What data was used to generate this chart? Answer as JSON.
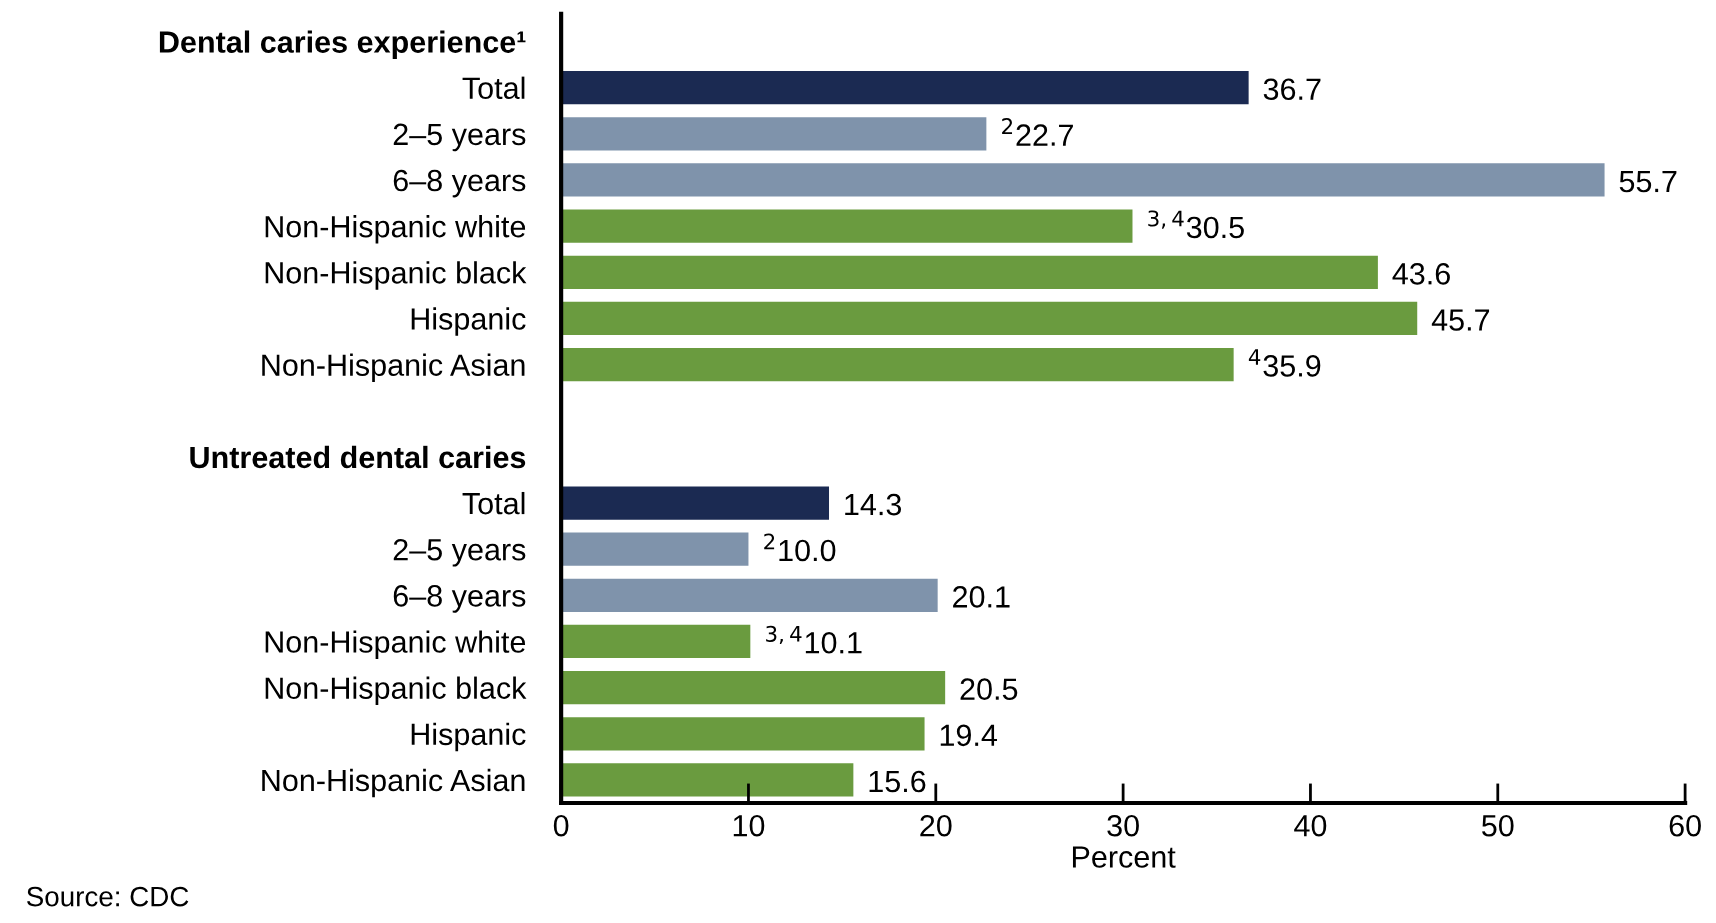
{
  "chart_data": {
    "type": "bar",
    "orientation": "horizontal",
    "xlabel": "Percent",
    "categories": [
      "Dental caries experience¹",
      "Total",
      "2–5 years",
      "6–8 years",
      "Non-Hispanic white",
      "Non-Hispanic black",
      "Hispanic",
      "Non-Hispanic Asian",
      null,
      "Untreated dental caries",
      "Total",
      "2–5 years",
      "6–8 years",
      "Non-Hispanic white",
      "Non-Hispanic black",
      "Hispanic",
      "Non-Hispanic Asian"
    ],
    "values": [
      null,
      36.7,
      22.7,
      55.7,
      30.5,
      43.6,
      45.7,
      35.9,
      null,
      null,
      14.3,
      10.0,
      20.1,
      10.1,
      20.5,
      19.4,
      15.6
    ],
    "value_labels": [
      null,
      "36.7",
      "$^{2}$22.7",
      "55.7",
      "$^{3,4}$30.5",
      "43.6",
      "45.7",
      "$^{4}$35.9",
      null,
      null,
      "14.3",
      "$^{2}$10.0",
      "20.1",
      "$^{3,4}$10.1",
      "20.5",
      "19.4",
      "15.6"
    ],
    "colors": [
      null,
      "#1b2a52",
      "#7f93ab",
      "#7f93ab",
      "#6a9b3f",
      "#6a9b3f",
      "#6a9b3f",
      "#6a9b3f",
      null,
      null,
      "#1b2a52",
      "#7f93ab",
      "#7f93ab",
      "#6a9b3f",
      "#6a9b3f",
      "#6a9b3f",
      "#6a9b3f"
    ],
    "xlim": [
      0,
      60
    ],
    "xticks": [
      0,
      10,
      20,
      30,
      40,
      50,
      60
    ],
    "grid": false,
    "annotations": [
      "Source: CDC"
    ]
  }
}
